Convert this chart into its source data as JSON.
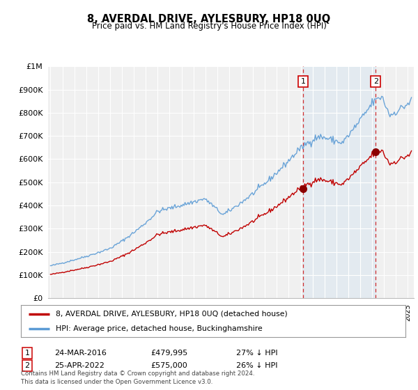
{
  "title": "8, AVERDAL DRIVE, AYLESBURY, HP18 0UQ",
  "subtitle": "Price paid vs. HM Land Registry's House Price Index (HPI)",
  "hpi_label": "HPI: Average price, detached house, Buckinghamshire",
  "property_label": "8, AVERDAL DRIVE, AYLESBURY, HP18 0UQ (detached house)",
  "footnote": "Contains HM Land Registry data © Crown copyright and database right 2024.\nThis data is licensed under the Open Government Licence v3.0.",
  "sale1_label": "1",
  "sale1_date": "24-MAR-2016",
  "sale1_price": "£479,995",
  "sale1_note": "27% ↓ HPI",
  "sale2_label": "2",
  "sale2_date": "25-APR-2022",
  "sale2_price": "£575,000",
  "sale2_note": "26% ↓ HPI",
  "sale1_year": 2016.22,
  "sale2_year": 2022.3,
  "sale1_price_val": 479995,
  "sale2_price_val": 575000,
  "hpi_color": "#5b9bd5",
  "hpi_fill_color": "#ddeeff",
  "property_color": "#c00000",
  "sale_marker_color": "#8b0000",
  "background_color": "#ffffff",
  "plot_bg_color": "#f0f0f0",
  "ylim": [
    0,
    1000000
  ],
  "xlim_start": 1994.8,
  "xlim_end": 2025.5,
  "yticks": [
    0,
    100000,
    200000,
    300000,
    400000,
    500000,
    600000,
    700000,
    800000,
    900000,
    1000000
  ],
  "ytick_labels": [
    "£0",
    "£100K",
    "£200K",
    "£300K",
    "£400K",
    "£500K",
    "£600K",
    "£700K",
    "£800K",
    "£900K",
    "£1M"
  ]
}
